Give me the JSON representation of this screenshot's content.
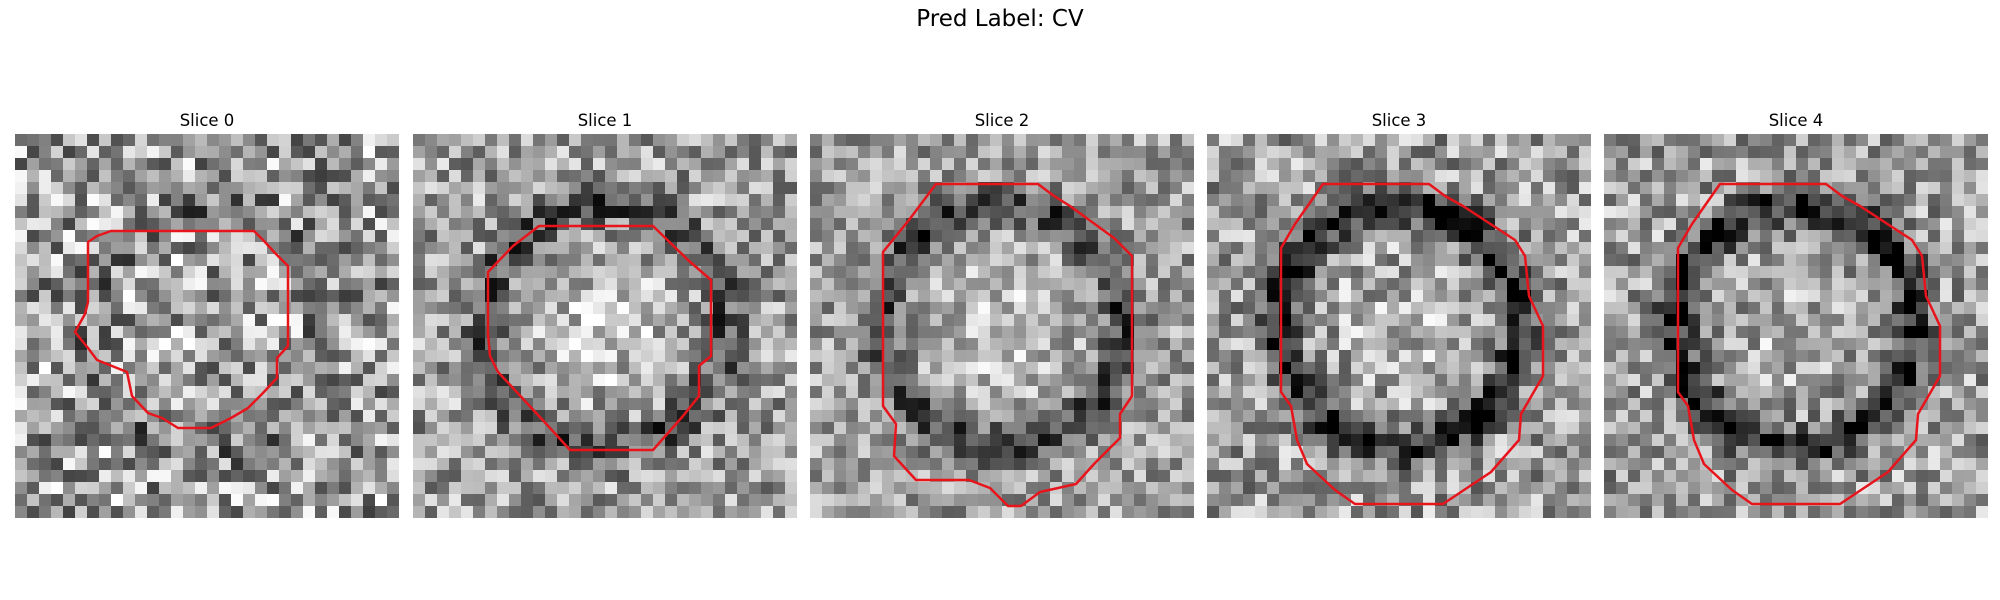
{
  "figure": {
    "title": "Pred Label: CV",
    "contour_color": "#e8141c"
  },
  "panels": [
    {
      "title": "Slice 0",
      "seed": 11,
      "ring_strength": 0.25,
      "center_bright": 0.05,
      "noise": 0.38
    },
    {
      "title": "Slice 1",
      "seed": 23,
      "ring_strength": 0.55,
      "center_bright": 0.35,
      "noise": 0.3
    },
    {
      "title": "Slice 2",
      "seed": 37,
      "ring_strength": 0.65,
      "center_bright": 0.3,
      "noise": 0.26
    },
    {
      "title": "Slice 3",
      "seed": 41,
      "ring_strength": 0.85,
      "center_bright": 0.15,
      "noise": 0.3
    },
    {
      "title": "Slice 4",
      "seed": 53,
      "ring_strength": 0.85,
      "center_bright": 0.15,
      "noise": 0.3
    }
  ]
}
